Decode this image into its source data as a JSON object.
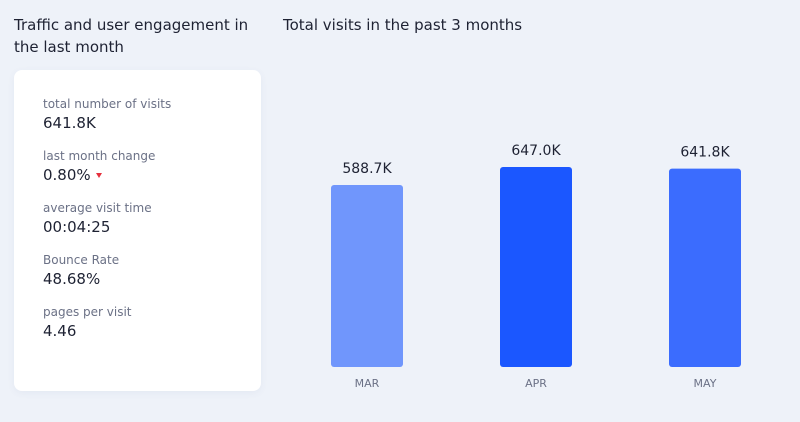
{
  "left_panel": {
    "title": "Traffic and user engagement in the last month",
    "stats": [
      {
        "label": "total number of visits",
        "value": "641.8K"
      },
      {
        "label": "last month change",
        "value": "0.80%",
        "trend": "down",
        "trend_color": "#e5303d"
      },
      {
        "label": "average visit time",
        "value": "00:04:25"
      },
      {
        "label": "Bounce Rate",
        "value": "48.68%"
      },
      {
        "label": "pages per visit",
        "value": "4.46"
      }
    ]
  },
  "chart_data": {
    "type": "bar",
    "title": "Total visits in the past 3 months",
    "categories": [
      "MAR",
      "APR",
      "MAY"
    ],
    "values": [
      588.7,
      647.0,
      641.8
    ],
    "value_labels": [
      "588.7K",
      "647.0K",
      "641.8K"
    ],
    "unit": "K",
    "bar_colors": [
      "#7096fc",
      "#1b57ff",
      "#3b6cfe"
    ],
    "ylim": [
      0,
      647.0
    ],
    "grid": false,
    "legend": "none",
    "xlabel": "",
    "ylabel": ""
  }
}
